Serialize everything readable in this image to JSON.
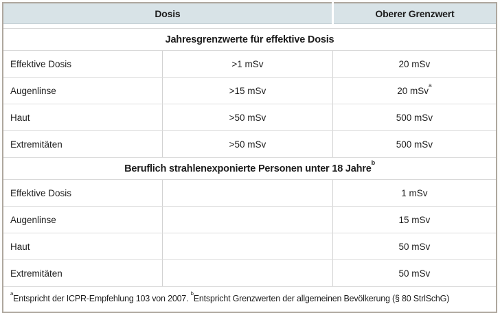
{
  "table": {
    "columns": [
      {
        "label": "Dosis"
      },
      {
        "label": "Oberer Grenzwert"
      }
    ],
    "sections": [
      {
        "title": "Jahresgrenzwerte für effektive Dosis",
        "title_sup": "",
        "rows": [
          {
            "label": "Effektive Dosis",
            "trigger": ">1 mSv",
            "limit": "20 mSv",
            "limit_sup": ""
          },
          {
            "label": "Augenlinse",
            "trigger": ">15 mSv",
            "limit": "20 mSv",
            "limit_sup": "a"
          },
          {
            "label": "Haut",
            "trigger": ">50 mSv",
            "limit": "500 mSv",
            "limit_sup": ""
          },
          {
            "label": "Extremitäten",
            "trigger": ">50 mSv",
            "limit": "500 mSv",
            "limit_sup": ""
          }
        ]
      },
      {
        "title": "Beruflich strahlenexponierte Personen unter 18 Jahre",
        "title_sup": "b",
        "rows": [
          {
            "label": "Effektive Dosis",
            "trigger": "",
            "limit": "1 mSv",
            "limit_sup": ""
          },
          {
            "label": "Augenlinse",
            "trigger": "",
            "limit": "15 mSv",
            "limit_sup": ""
          },
          {
            "label": "Haut",
            "trigger": "",
            "limit": "50 mSv",
            "limit_sup": ""
          },
          {
            "label": "Extremitäten",
            "trigger": "",
            "limit": "50 mSv",
            "limit_sup": ""
          }
        ]
      }
    ],
    "footnote": {
      "part1_sup": "a",
      "part1_text": "Entspricht der ICPR-Empfehlung 103 von 2007. ",
      "part2_sup": "b",
      "part2_text": "Entspricht Grenzwerten der allgemeinen Bevölkerung (§ 80 StrlSchG)"
    }
  },
  "colors": {
    "header_bg": "#d8e3e7",
    "outer_border": "#aea79e",
    "row_line": "#dcdcdc",
    "text": "#1c1c1c"
  }
}
